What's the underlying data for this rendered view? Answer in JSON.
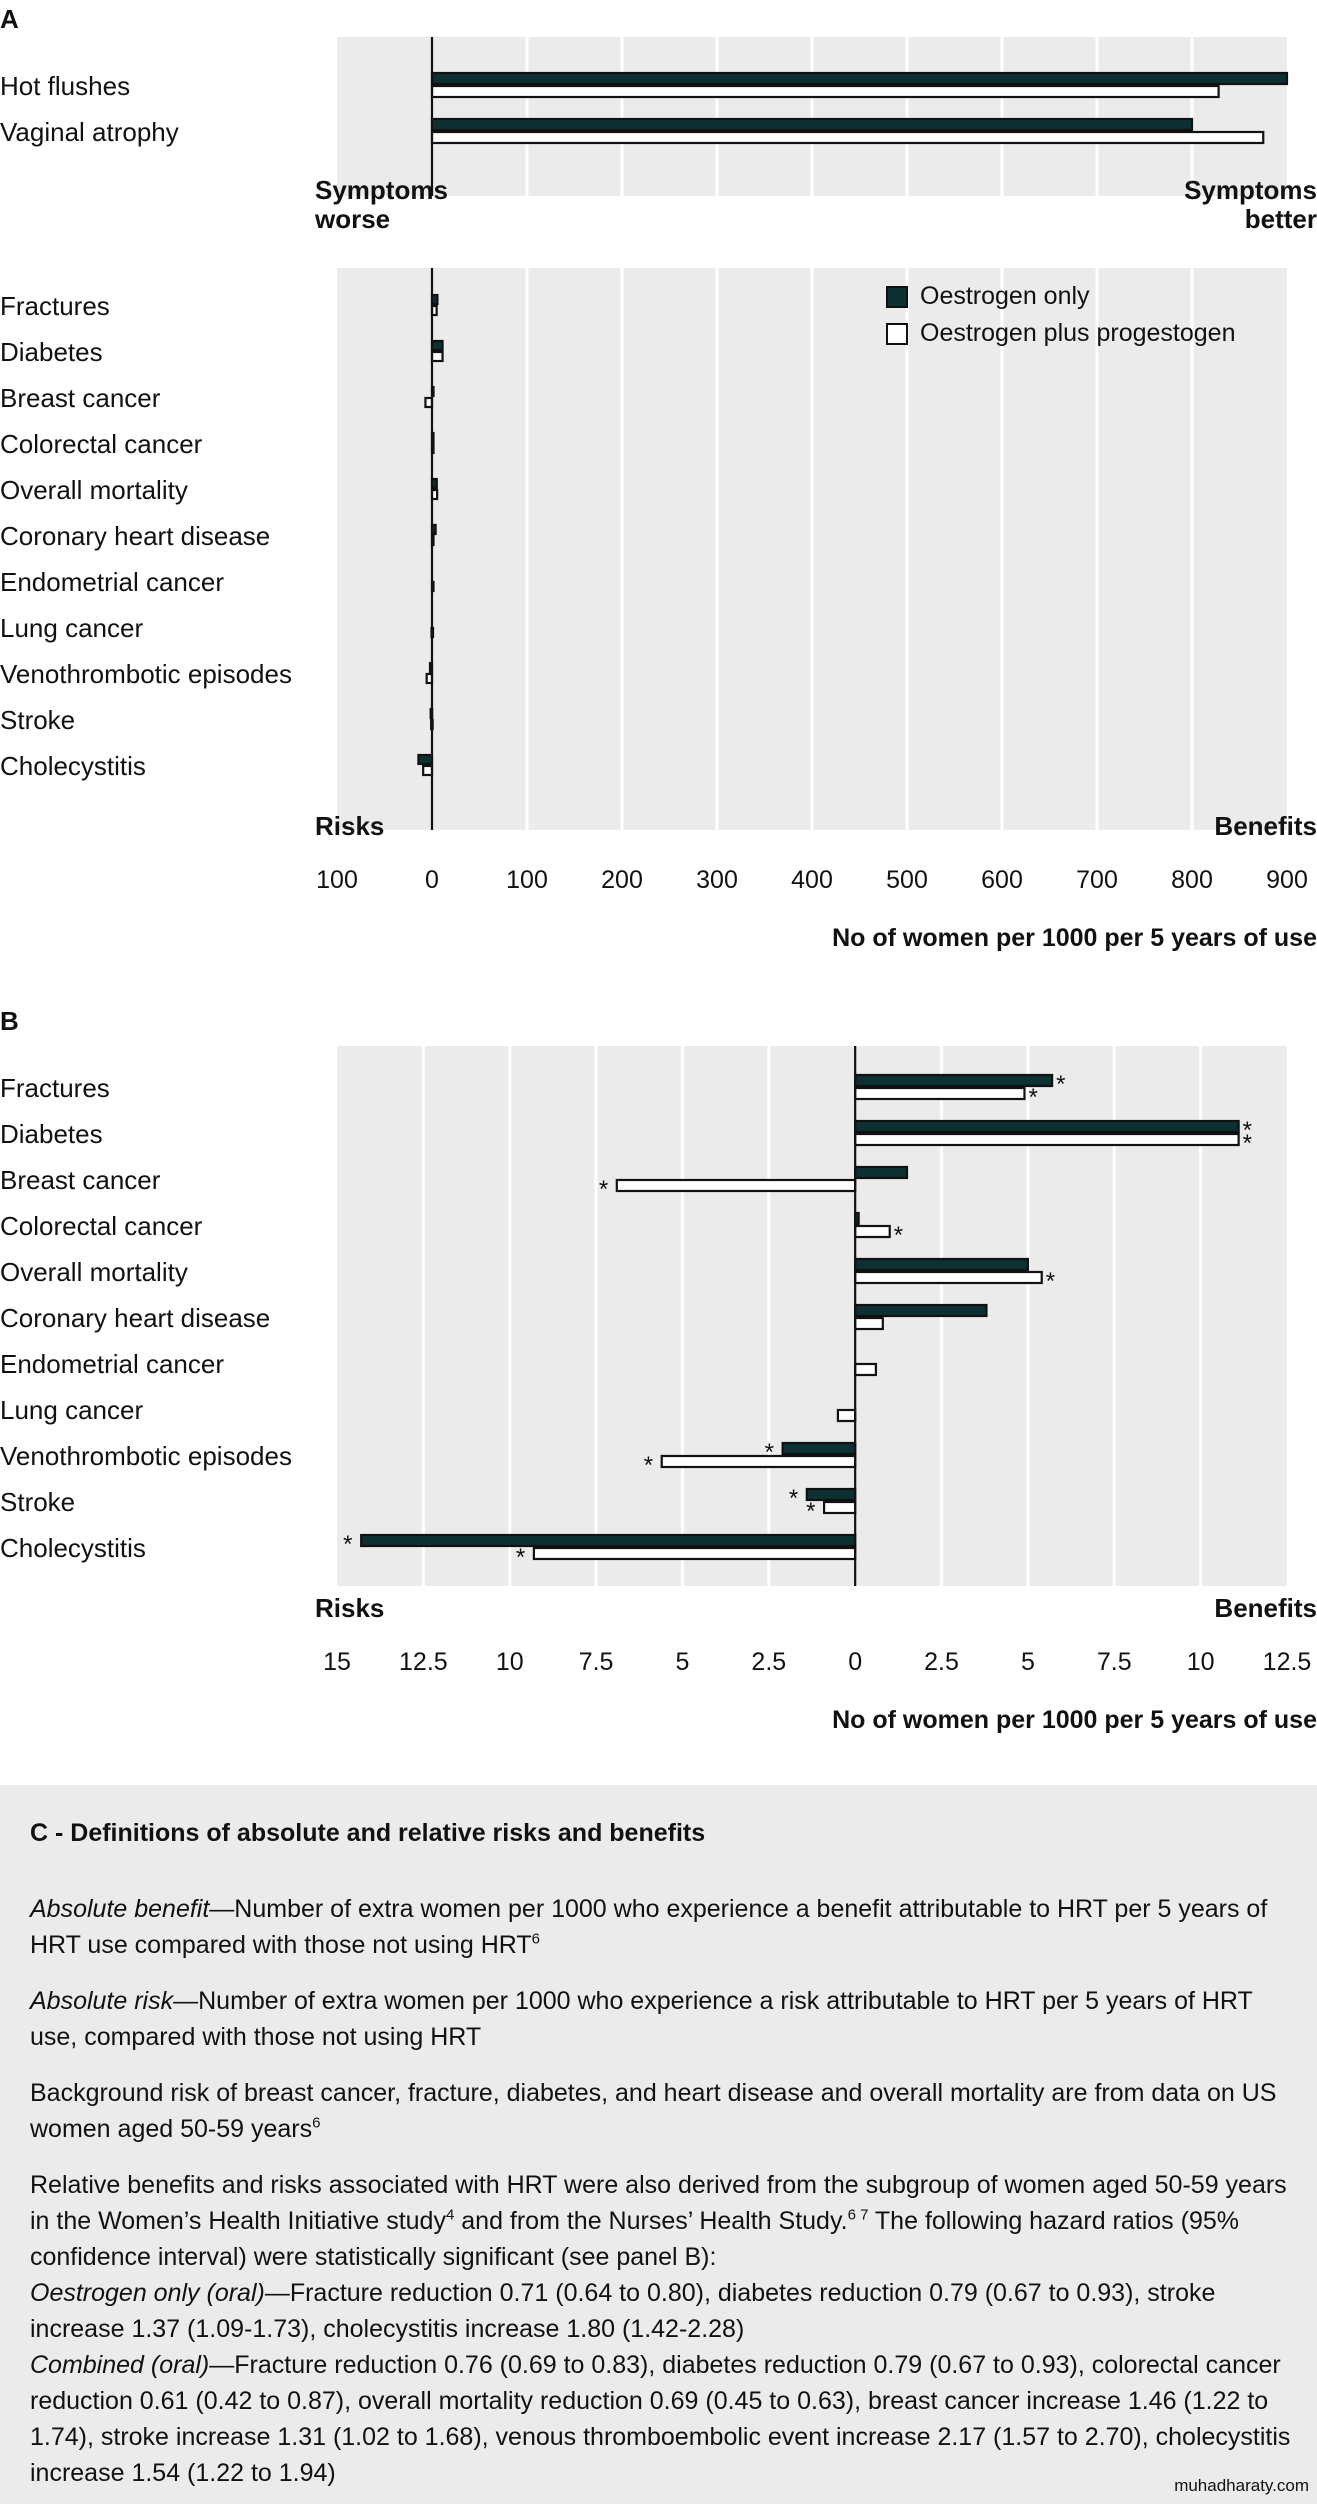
{
  "colors": {
    "oestrogen_only": "#0d3033",
    "oestrogen_plus_progestogen": "#ffffff",
    "plot_background": "#ebebeb",
    "gridline": "#ffffff",
    "bar_outline": "#111111"
  },
  "panel_a": {
    "letter": "A",
    "symptoms_worse": [
      "Symptoms",
      "worse"
    ],
    "symptoms_better": [
      "Symptoms",
      "better"
    ],
    "risks_label": "Risks",
    "benefits_label": "Benefits",
    "tick_labels": [
      "100",
      "0",
      "100",
      "200",
      "300",
      "400",
      "500",
      "600",
      "700",
      "800",
      "900"
    ],
    "axis_title": "No of women per 1000 per 5 years of use"
  },
  "panel_b": {
    "letter": "B",
    "risks_label": "Risks",
    "benefits_label": "Benefits",
    "tick_labels": [
      "15",
      "12.5",
      "10",
      "7.5",
      "5",
      "2.5",
      "0",
      "2.5",
      "5",
      "7.5",
      "10",
      "12.5"
    ],
    "axis_title": "No of women per 1000 per 5 years of use"
  },
  "legend": {
    "items": [
      {
        "label": "Oestrogen only",
        "swatch": "filled"
      },
      {
        "label": "Oestrogen plus progestogen",
        "swatch": "open"
      }
    ]
  },
  "chart_data": [
    {
      "type": "bar",
      "orientation": "horizontal",
      "title": "A - Symptoms",
      "categories": [
        "Hot flushes",
        "Vaginal atrophy"
      ],
      "series": [
        {
          "name": "Oestrogen only",
          "values": [
            900,
            800
          ]
        },
        {
          "name": "Oestrogen plus progestogen",
          "values": [
            828,
            875
          ]
        }
      ],
      "xlim": [
        -100,
        900
      ],
      "xlabel_left": "Symptoms worse",
      "xlabel_right": "Symptoms better",
      "grid": true
    },
    {
      "type": "bar",
      "orientation": "horizontal",
      "title": "A - Risks and benefits (absolute)",
      "categories": [
        "Fractures",
        "Diabetes",
        "Breast cancer",
        "Colorectal cancer",
        "Overall mortality",
        "Coronary heart disease",
        "Endometrial cancer",
        "Lung cancer",
        "Venothrombotic episodes",
        "Stroke",
        "Cholecystitis"
      ],
      "series": [
        {
          "name": "Oestrogen only",
          "values": [
            5.7,
            11.1,
            1.5,
            0.1,
            5.0,
            3.8,
            0,
            0,
            -2.1,
            -1.4,
            -14.3
          ]
        },
        {
          "name": "Oestrogen plus progestogen",
          "values": [
            4.9,
            11.1,
            -6.9,
            1.0,
            5.4,
            0.8,
            0.6,
            -0.5,
            -5.6,
            -0.9,
            -9.3
          ]
        }
      ],
      "xlim": [
        -100,
        900
      ],
      "xlabel": "No of women per 1000 per 5 years of use",
      "xlabel_left": "Risks",
      "xlabel_right": "Benefits",
      "xticks": [
        -100,
        0,
        100,
        200,
        300,
        400,
        500,
        600,
        700,
        800,
        900
      ],
      "legend": "top-right",
      "grid": true
    },
    {
      "type": "bar",
      "orientation": "horizontal",
      "title": "B - Risks and benefits (zoomed)",
      "categories": [
        "Fractures",
        "Diabetes",
        "Breast cancer",
        "Colorectal cancer",
        "Overall mortality",
        "Coronary heart disease",
        "Endometrial cancer",
        "Lung cancer",
        "Venothrombotic episodes",
        "Stroke",
        "Cholecystitis"
      ],
      "series": [
        {
          "name": "Oestrogen only",
          "values": [
            5.7,
            11.1,
            1.5,
            0.1,
            5.0,
            3.8,
            0,
            0,
            -2.1,
            -1.4,
            -14.3
          ],
          "significant": [
            true,
            true,
            false,
            false,
            false,
            false,
            false,
            false,
            true,
            true,
            true
          ]
        },
        {
          "name": "Oestrogen plus progestogen",
          "values": [
            4.9,
            11.1,
            -6.9,
            1.0,
            5.4,
            0.8,
            0.6,
            -0.5,
            -5.6,
            -0.9,
            -9.3
          ],
          "significant": [
            true,
            true,
            true,
            true,
            true,
            false,
            false,
            false,
            true,
            true,
            true
          ]
        }
      ],
      "xlim": [
        -15,
        12.5
      ],
      "xticks": [
        -15,
        -12.5,
        -10,
        -7.5,
        -5,
        -2.5,
        0,
        2.5,
        5,
        7.5,
        10,
        12.5
      ],
      "xlabel": "No of women per 1000 per 5 years of use",
      "xlabel_left": "Risks",
      "xlabel_right": "Benefits",
      "significance_marker": "*",
      "grid": true
    }
  ],
  "panel_c": {
    "title": "C - Definitions of absolute and relative risks and benefits",
    "absolute_benefit": {
      "term": "Absolute benefit",
      "text": "—Number of extra women per 1000 who experience a benefit attributable to HRT per 5 years of HRT use compared with those not using HRT",
      "ref": "6"
    },
    "absolute_risk": {
      "term": "Absolute risk",
      "text": "—Number of extra women per 1000 who experience a risk attributable to HRT per 5 years of HRT use, compared with those not using HRT"
    },
    "background": {
      "text": "Background risk of breast cancer, fracture, diabetes, and heart disease and overall mortality are from data on US women aged 50-59 years",
      "ref": "6"
    },
    "relative": {
      "text1": "Relative benefits and risks associated with HRT were also derived from the subgroup of women aged 50-59 years in the Women’s Health Initiative study",
      "ref1": "4",
      "text2": " and from the Nurses’ Health Study.",
      "ref2": "6 7",
      "text3": " The following hazard ratios (95% confidence interval) were statistically significant (see panel B):",
      "oestrogen_only_term": "Oestrogen only (oral)",
      "oestrogen_only_text": "—Fracture reduction 0.71 (0.64 to 0.80), diabetes reduction  0.79 (0.67 to 0.93), stroke increase 1.37 (1.09-1.73), cholecystitis increase 1.80 (1.42-2.28)",
      "combined_term": "Combined (oral)",
      "combined_text": "—Fracture reduction 0.76 (0.69 to 0.83), diabetes reduction 0.79 (0.67 to 0.93), colorectal cancer reduction 0.61 (0.42 to 0.87), overall mortality reduction 0.69 (0.45 to 0.63), breast cancer increase 1.46 (1.22 to 1.74), stroke increase 1.31 (1.02 to 1.68), venous thromboembolic event increase 2.17 (1.57 to 2.70), cholecystitis increase 1.54 (1.22 to 1.94)"
    }
  },
  "watermark": "muhadharaty.com"
}
